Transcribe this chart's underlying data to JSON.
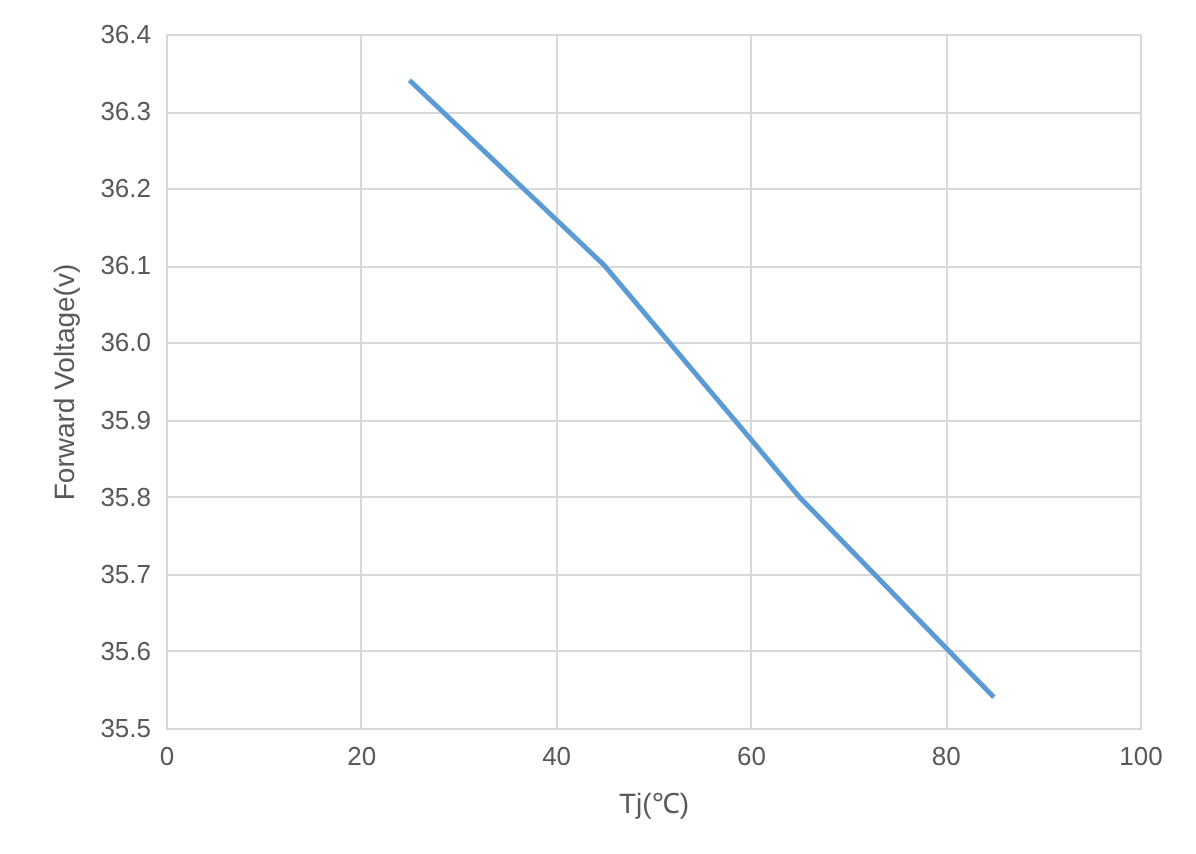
{
  "chart_data": {
    "type": "line",
    "xlabel": "Tj(℃)",
    "ylabel": "Forward Voltage(v)",
    "x": [
      25,
      45,
      65,
      85
    ],
    "series": [
      {
        "color": "#5b9bd5",
        "values": [
          36.34,
          36.1,
          35.8,
          35.54
        ]
      }
    ],
    "xlim": [
      0,
      100
    ],
    "xticks": [
      0,
      20,
      40,
      60,
      80,
      100
    ],
    "ylim": [
      35.5,
      36.4
    ],
    "yticks": [
      35.5,
      35.6,
      35.7,
      35.8,
      35.9,
      {
        "value": 36,
        "label": "36.0"
      },
      36.1,
      36.2,
      36.3,
      36.4
    ],
    "grid": true,
    "marker": "none",
    "line_style": "solid"
  }
}
